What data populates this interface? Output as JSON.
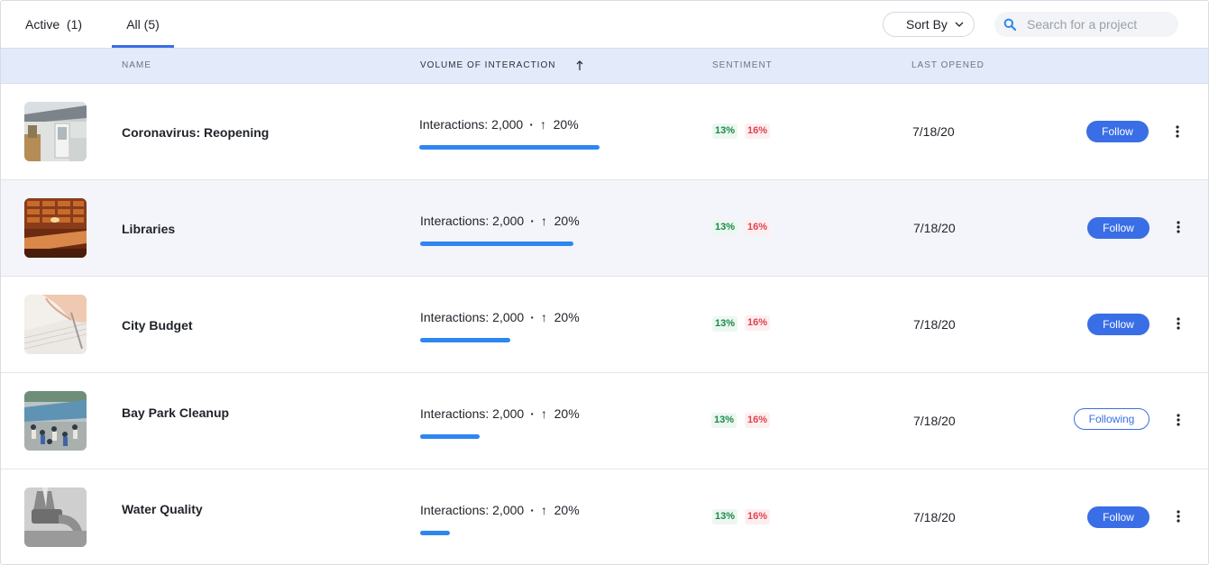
{
  "tabs": [
    {
      "label": "Active",
      "count": "(1)"
    },
    {
      "label": "All",
      "count": "(5)"
    }
  ],
  "toolbar": {
    "sort_label": "Sort By",
    "search_placeholder": "Search for a project"
  },
  "table": {
    "columns": [
      "Name",
      "Volume of Interaction",
      "Sentiment",
      "Last Opened"
    ],
    "sorted_column": "Volume of Interaction",
    "rows": [
      {
        "name": "Coronavirus: Reopening",
        "interactions": "Interactions: 2,000",
        "change": "20%",
        "volume_fraction": 1.0,
        "sentiment_positive": "13%",
        "sentiment_negative": "16%",
        "last_opened": "7/18/20",
        "action": "Follow",
        "thumbnail": "house-photo"
      },
      {
        "name": "Libraries",
        "interactions": "Interactions: 2,000",
        "change": "20%",
        "volume_fraction": 0.85,
        "sentiment_positive": "13%",
        "sentiment_negative": "16%",
        "last_opened": "7/18/20",
        "action": "Follow",
        "thumbnail": "library-photo"
      },
      {
        "name": "City Budget",
        "interactions": "Interactions: 2,000",
        "change": "20%",
        "volume_fraction": 0.5,
        "sentiment_positive": "13%",
        "sentiment_negative": "16%",
        "last_opened": "7/18/20",
        "action": "Follow",
        "thumbnail": "writing-hand-photo"
      },
      {
        "name": "Bay Park Cleanup",
        "interactions": "Interactions: 2,000",
        "change": "20%",
        "volume_fraction": 0.33,
        "sentiment_positive": "13%",
        "sentiment_negative": "16%",
        "last_opened": "7/18/20",
        "action": "Following",
        "thumbnail": "beach-crowd-photo"
      },
      {
        "name": "Water Quality",
        "interactions": "Interactions: 2,000",
        "change": "20%",
        "volume_fraction": 0.165,
        "sentiment_positive": "13%",
        "sentiment_negative": "16%",
        "last_opened": "7/18/20",
        "action": "Follow",
        "thumbnail": "faucet-photo"
      }
    ]
  },
  "colors": {
    "accent": "#3a6ee6",
    "bar": "#2f86f0",
    "positive": "#1a8a4a",
    "negative": "#e0414f",
    "header_bg": "#e3ebfb"
  }
}
